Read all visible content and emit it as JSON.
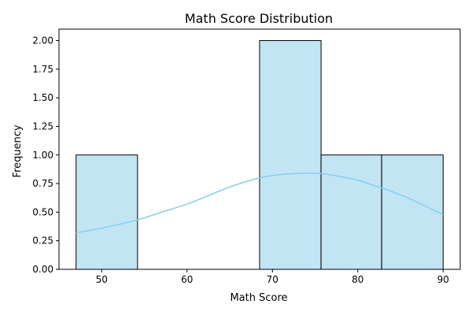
{
  "chart_data": {
    "type": "bar",
    "subtype": "histogram-with-kde",
    "title": "Math Score Distribution",
    "xlabel": "Math Score",
    "ylabel": "Frequency",
    "xlim": [
      45,
      92
    ],
    "ylim": [
      0,
      2.1
    ],
    "xticks": [
      50,
      60,
      70,
      80,
      90
    ],
    "yticks": [
      0,
      0.25,
      0.5,
      0.75,
      1,
      1.25,
      1.5,
      1.75,
      2
    ],
    "ytick_labels": [
      "0.00",
      "0.25",
      "0.50",
      "0.75",
      "1.00",
      "1.25",
      "1.50",
      "1.75",
      "2.00"
    ],
    "grid": false,
    "bins": [
      {
        "x0": 47,
        "x1": 54.2,
        "count": 1
      },
      {
        "x0": 54.2,
        "x1": 61.3,
        "count": 0
      },
      {
        "x0": 61.3,
        "x1": 68.5,
        "count": 0
      },
      {
        "x0": 68.5,
        "x1": 75.7,
        "count": 2
      },
      {
        "x0": 75.7,
        "x1": 82.8,
        "count": 1
      },
      {
        "x0": 82.8,
        "x1": 90,
        "count": 1
      }
    ],
    "kde": {
      "x": [
        47,
        50,
        53,
        55,
        57,
        60,
        63,
        65,
        68,
        70,
        72,
        74,
        76,
        78,
        80,
        82,
        84,
        86,
        88,
        90
      ],
      "y": [
        0.32,
        0.36,
        0.41,
        0.45,
        0.5,
        0.57,
        0.66,
        0.72,
        0.79,
        0.82,
        0.835,
        0.84,
        0.835,
        0.81,
        0.78,
        0.73,
        0.68,
        0.62,
        0.55,
        0.48
      ]
    },
    "colors": {
      "bar_fill": "#c2e5f4",
      "bar_edge": "#000000",
      "kde_line": "#87ceeb"
    }
  }
}
